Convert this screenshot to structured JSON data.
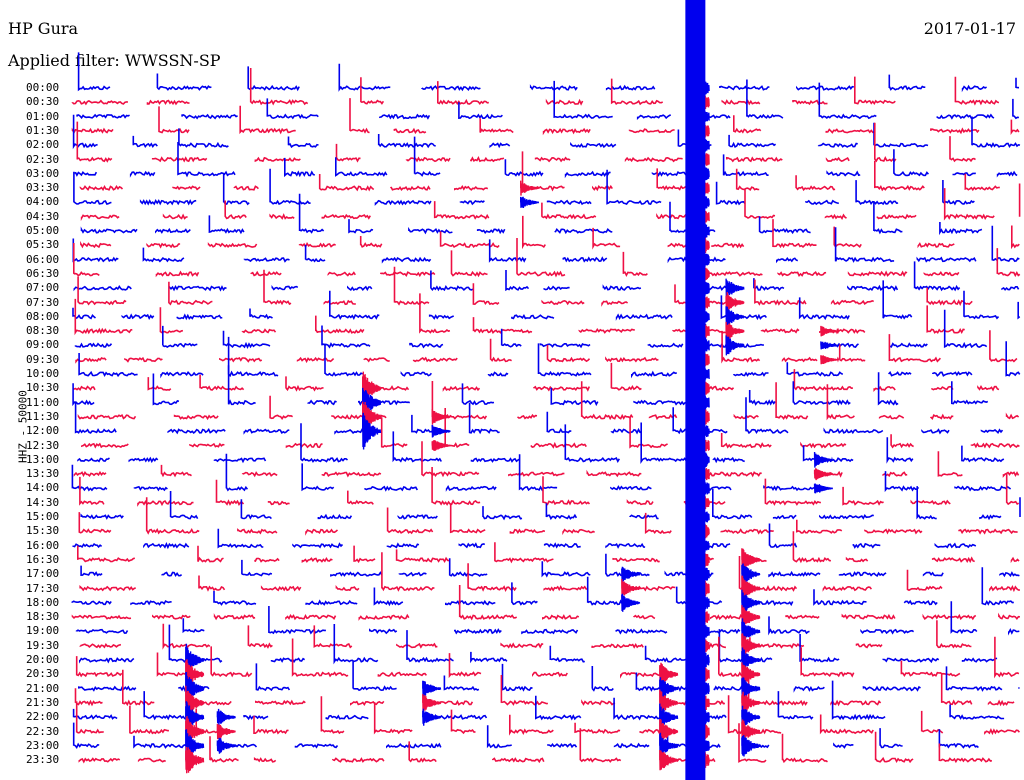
{
  "header": {
    "station": "HP Gura",
    "date": "2017-01-17",
    "filter": "Applied filter: WWSSN-SP"
  },
  "chart_data": {
    "type": "line",
    "title": "HP Gura",
    "ylabel": "HHZ - 50000",
    "xlabel": "",
    "minutes_per_row": 30,
    "colors": [
      "#0000ee",
      "#ee1044"
    ],
    "row_labels": [
      "00:00",
      "00:30",
      "01:00",
      "01:30",
      "02:00",
      "02:30",
      "03:00",
      "03:30",
      "04:00",
      "04:30",
      "05:00",
      "05:30",
      "06:00",
      "06:30",
      "07:00",
      "07:30",
      "08:00",
      "08:30",
      "09:00",
      "09:30",
      "10:00",
      "10:30",
      "11:00",
      "11:30",
      "12:00",
      "12:30",
      "13:00",
      "13:30",
      "14:00",
      "14:30",
      "15:00",
      "15:30",
      "16:00",
      "16:30",
      "17:00",
      "17:30",
      "18:00",
      "18:30",
      "19:00",
      "19:30",
      "20:00",
      "20:30",
      "21:00",
      "21:30",
      "22:00",
      "22:30",
      "23:00",
      "23:30"
    ],
    "events": [
      {
        "row_start": 0,
        "row_end": 47,
        "minute": 19.6,
        "amplitude": 60
      },
      {
        "row_start": 21,
        "row_end": 24,
        "minute": 9.2,
        "amplitude": 20
      },
      {
        "row_start": 7,
        "row_end": 8,
        "minute": 14.2,
        "amplitude": 8
      },
      {
        "row_start": 40,
        "row_end": 47,
        "minute": 3.6,
        "amplitude": 18
      },
      {
        "row_start": 44,
        "row_end": 46,
        "minute": 4.6,
        "amplitude": 10
      },
      {
        "row_start": 42,
        "row_end": 44,
        "minute": 11.1,
        "amplitude": 10
      },
      {
        "row_start": 34,
        "row_end": 36,
        "minute": 17.4,
        "amplitude": 10
      },
      {
        "row_start": 33,
        "row_end": 46,
        "minute": 21.2,
        "amplitude": 14
      },
      {
        "row_start": 14,
        "row_end": 18,
        "minute": 20.7,
        "amplitude": 12
      },
      {
        "row_start": 41,
        "row_end": 47,
        "minute": 18.6,
        "amplitude": 14
      },
      {
        "row_start": 23,
        "row_end": 25,
        "minute": 11.4,
        "amplitude": 8
      },
      {
        "row_start": 26,
        "row_end": 28,
        "minute": 23.5,
        "amplitude": 8
      },
      {
        "row_start": 17,
        "row_end": 19,
        "minute": 23.7,
        "amplitude": 6
      }
    ]
  }
}
